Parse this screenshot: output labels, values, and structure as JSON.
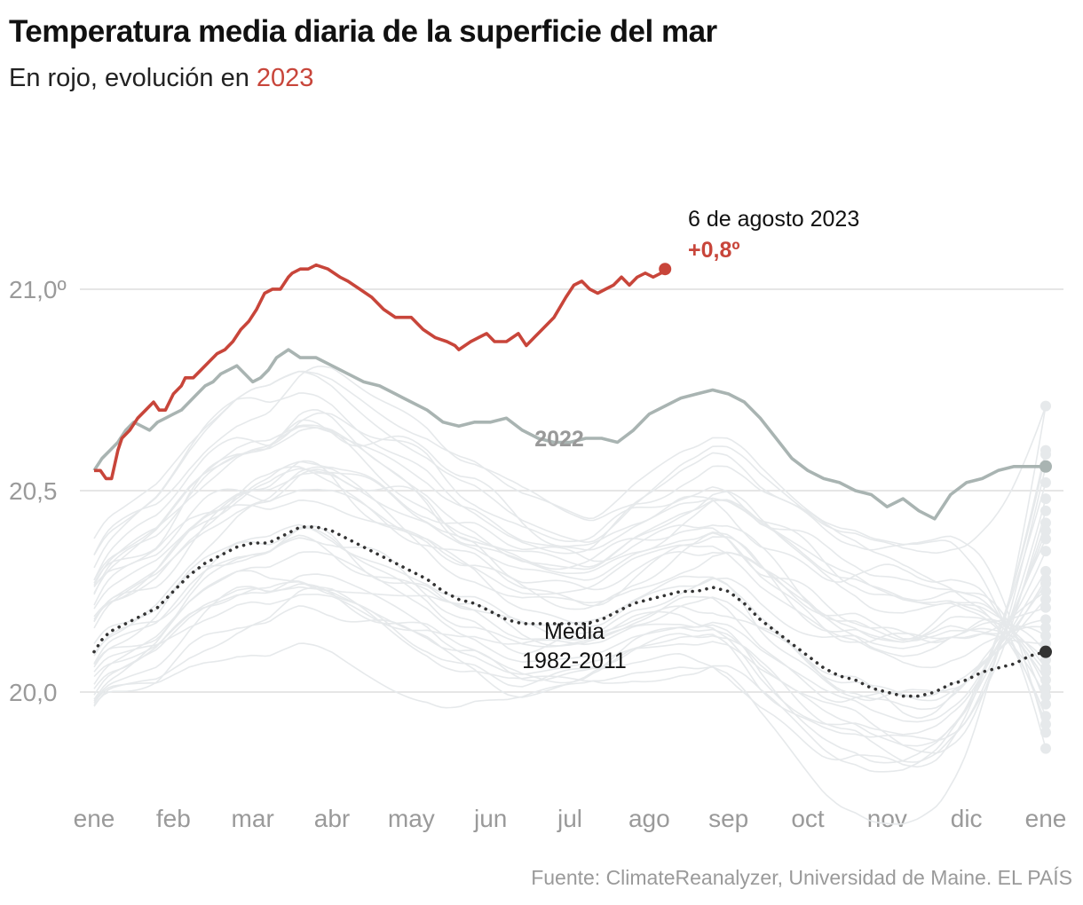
{
  "header": {
    "title": "Temperatura media diaria de la superficie del mar",
    "subtitle_prefix": "En rojo, evolución en ",
    "subtitle_highlight": "2023"
  },
  "footer": {
    "source": "Fuente: ClimateReanalyzer, Universidad de Maine. EL PAÍS"
  },
  "colors": {
    "red": "#c8453a",
    "gray_2022": "#a9b4b2",
    "history": "#e6e9eb",
    "mean": "#333333",
    "grid": "#dddddd",
    "axis_text": "#9a9a9a"
  },
  "chart_data": {
    "type": "line",
    "x_unit": "mes",
    "xlim": [
      0,
      12
    ],
    "ylim": [
      19.65,
      21.35
    ],
    "y_ticks": [
      {
        "value": 21.0,
        "label": "21,0º"
      },
      {
        "value": 20.5,
        "label": "20,5"
      },
      {
        "value": 20.0,
        "label": "20,0"
      }
    ],
    "x_ticks": [
      {
        "value": 0,
        "label": "ene"
      },
      {
        "value": 1,
        "label": "feb"
      },
      {
        "value": 2,
        "label": "mar"
      },
      {
        "value": 3,
        "label": "abr"
      },
      {
        "value": 4,
        "label": "may"
      },
      {
        "value": 5,
        "label": "jun"
      },
      {
        "value": 6,
        "label": "jul"
      },
      {
        "value": 7,
        "label": "ago"
      },
      {
        "value": 8,
        "label": "sep"
      },
      {
        "value": 9,
        "label": "oct"
      },
      {
        "value": 10,
        "label": "nov"
      },
      {
        "value": 11,
        "label": "dic"
      },
      {
        "value": 12,
        "label": "ene"
      }
    ],
    "grid": true,
    "series": [
      {
        "name": "2023",
        "style": "red",
        "x": [
          0,
          0.08,
          0.15,
          0.22,
          0.3,
          0.35,
          0.45,
          0.55,
          0.65,
          0.75,
          0.82,
          0.9,
          1.0,
          1.1,
          1.15,
          1.25,
          1.35,
          1.45,
          1.55,
          1.65,
          1.75,
          1.85,
          1.95,
          2.05,
          2.15,
          2.25,
          2.35,
          2.45,
          2.5,
          2.6,
          2.7,
          2.8,
          2.95,
          3.1,
          3.2,
          3.35,
          3.5,
          3.65,
          3.8,
          3.9,
          4.0,
          4.15,
          4.3,
          4.45,
          4.55,
          4.6,
          4.75,
          4.85,
          4.95,
          5.05,
          5.2,
          5.35,
          5.45,
          5.55,
          5.65,
          5.8,
          5.95,
          6.05,
          6.15,
          6.25,
          6.35,
          6.45,
          6.55,
          6.65,
          6.75,
          6.85,
          6.95,
          7.05,
          7.15,
          7.2
        ],
        "y": [
          20.55,
          20.55,
          20.53,
          20.53,
          20.6,
          20.63,
          20.65,
          20.68,
          20.7,
          20.72,
          20.7,
          20.7,
          20.74,
          20.76,
          20.78,
          20.78,
          20.8,
          20.82,
          20.84,
          20.85,
          20.87,
          20.9,
          20.92,
          20.95,
          20.99,
          21.0,
          21.0,
          21.03,
          21.04,
          21.05,
          21.05,
          21.06,
          21.05,
          21.03,
          21.02,
          21.0,
          20.98,
          20.95,
          20.93,
          20.93,
          20.93,
          20.9,
          20.88,
          20.87,
          20.86,
          20.85,
          20.87,
          20.88,
          20.89,
          20.87,
          20.87,
          20.89,
          20.86,
          20.88,
          20.9,
          20.93,
          20.98,
          21.01,
          21.02,
          21.0,
          20.99,
          21.0,
          21.01,
          21.03,
          21.01,
          21.03,
          21.04,
          21.03,
          21.04,
          21.05
        ]
      },
      {
        "name": "2022",
        "style": "gray",
        "x": [
          0,
          0.1,
          0.2,
          0.3,
          0.4,
          0.5,
          0.6,
          0.7,
          0.8,
          0.9,
          1.0,
          1.1,
          1.2,
          1.3,
          1.4,
          1.5,
          1.6,
          1.7,
          1.8,
          1.9,
          2.0,
          2.1,
          2.2,
          2.3,
          2.45,
          2.6,
          2.8,
          3.0,
          3.2,
          3.4,
          3.6,
          3.8,
          3.9,
          4.0,
          4.2,
          4.4,
          4.6,
          4.8,
          5.0,
          5.2,
          5.4,
          5.6,
          5.8,
          6.0,
          6.2,
          6.4,
          6.6,
          6.8,
          7.0,
          7.2,
          7.4,
          7.6,
          7.8,
          8.0,
          8.2,
          8.4,
          8.6,
          8.8,
          9.0,
          9.2,
          9.4,
          9.6,
          9.8,
          10.0,
          10.2,
          10.4,
          10.6,
          10.8,
          11.0,
          11.2,
          11.4,
          11.6,
          11.8,
          12.0
        ],
        "y": [
          20.55,
          20.58,
          20.6,
          20.62,
          20.65,
          20.67,
          20.66,
          20.65,
          20.67,
          20.68,
          20.69,
          20.7,
          20.72,
          20.74,
          20.76,
          20.77,
          20.79,
          20.8,
          20.81,
          20.79,
          20.77,
          20.78,
          20.8,
          20.83,
          20.85,
          20.83,
          20.83,
          20.81,
          20.79,
          20.77,
          20.76,
          20.74,
          20.73,
          20.72,
          20.7,
          20.67,
          20.66,
          20.67,
          20.67,
          20.68,
          20.65,
          20.63,
          20.62,
          20.62,
          20.63,
          20.63,
          20.62,
          20.65,
          20.69,
          20.71,
          20.73,
          20.74,
          20.75,
          20.74,
          20.72,
          20.68,
          20.63,
          20.58,
          20.55,
          20.53,
          20.52,
          20.5,
          20.49,
          20.46,
          20.48,
          20.45,
          20.43,
          20.49,
          20.52,
          20.53,
          20.55,
          20.56,
          20.56,
          20.56
        ]
      },
      {
        "name": "Media 1982-2011",
        "style": "mean",
        "x": [
          0,
          0.1,
          0.2,
          0.4,
          0.6,
          0.8,
          1.0,
          1.2,
          1.4,
          1.6,
          1.8,
          2.0,
          2.2,
          2.4,
          2.6,
          2.8,
          3.0,
          3.2,
          3.4,
          3.6,
          3.8,
          4.0,
          4.2,
          4.4,
          4.6,
          4.8,
          5.0,
          5.2,
          5.4,
          5.6,
          5.8,
          6.0,
          6.2,
          6.4,
          6.6,
          6.8,
          7.0,
          7.2,
          7.4,
          7.6,
          7.8,
          8.0,
          8.2,
          8.4,
          8.6,
          8.8,
          9.0,
          9.2,
          9.4,
          9.6,
          9.8,
          10.0,
          10.2,
          10.4,
          10.6,
          10.8,
          11.0,
          11.2,
          11.4,
          11.6,
          11.8,
          12.0
        ],
        "y": [
          20.1,
          20.13,
          20.15,
          20.17,
          20.19,
          20.21,
          20.25,
          20.29,
          20.32,
          20.34,
          20.36,
          20.37,
          20.37,
          20.39,
          20.41,
          20.41,
          20.4,
          20.38,
          20.36,
          20.34,
          20.32,
          20.3,
          20.28,
          20.25,
          20.23,
          20.22,
          20.2,
          20.18,
          20.17,
          20.17,
          20.17,
          20.17,
          20.17,
          20.18,
          20.2,
          20.22,
          20.23,
          20.24,
          20.25,
          20.25,
          20.26,
          20.25,
          20.22,
          20.18,
          20.15,
          20.12,
          20.09,
          20.06,
          20.04,
          20.03,
          20.01,
          20.0,
          19.99,
          19.99,
          20.0,
          20.02,
          20.03,
          20.05,
          20.06,
          20.07,
          20.09,
          20.1
        ]
      }
    ],
    "annotations": [
      {
        "x": 7.2,
        "y": 21.05,
        "label": "6 de agosto 2023",
        "value_label": "+0,8º",
        "series": "2023"
      },
      {
        "x": 5.9,
        "y": 20.53,
        "label": "2022",
        "series": "2022"
      },
      {
        "x": 5.95,
        "y": 20.02,
        "label": "Media",
        "sublabel": "1982-2011",
        "series": "Media 1982-2011"
      }
    ],
    "endpoints_dec31": [
      20.71,
      20.6,
      20.59,
      20.56,
      20.52,
      20.48,
      20.45,
      20.42,
      20.4,
      20.38,
      20.35,
      20.3,
      20.28,
      20.27,
      20.25,
      20.23,
      20.21,
      20.18,
      20.16,
      20.14,
      20.12,
      20.1,
      20.08,
      20.06,
      20.05,
      20.03,
      20.01,
      19.99,
      19.97,
      19.94,
      19.92,
      19.9,
      19.86
    ]
  }
}
